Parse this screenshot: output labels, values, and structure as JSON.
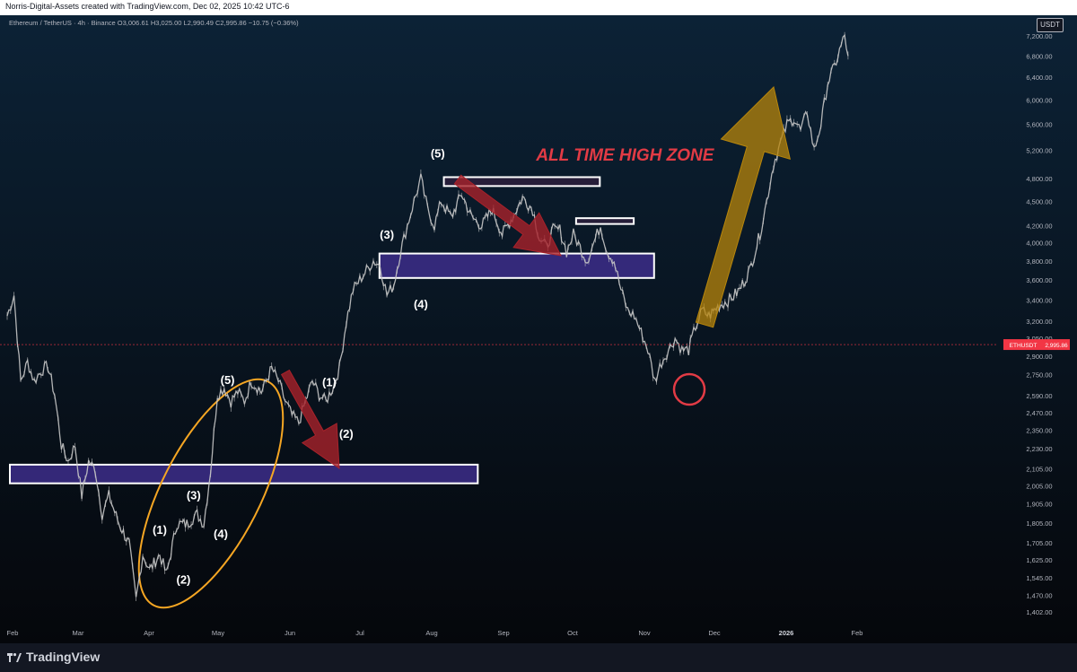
{
  "attribution": "Norris-Digital-Assets created with TradingView.com, Dec 02, 2025 10:42 UTC-6",
  "logo_text": "TradingView",
  "currency_badge": "USDT",
  "colors": {
    "background_top": "#0c2236",
    "background_bottom": "#05070b",
    "candles": "#c7c7c7",
    "zone_fill": "#3c2d8a",
    "zone_border": "#ffffff",
    "ath_zone_fill": "#2a1f3b",
    "red_arrow": "#a8222a",
    "gold_arrow": "#b8860b",
    "ellipse": "#f5a623",
    "circle": "#e23b45",
    "ath_label": "#e23b45",
    "price_tag": "#f23645"
  },
  "chart_data": {
    "type": "line",
    "symbol_line": {
      "pair": "Ethereum / TetherUS · 4h · Binance",
      "open": "O3,006.61",
      "high": "H3,025.00",
      "low": "L2,990.49",
      "close": "C2,995.86",
      "change": "−10.75 (−0.36%)"
    },
    "x_axis_labels": [
      "Feb",
      "Mar",
      "Apr",
      "May",
      "Jun",
      "Jul",
      "Aug",
      "Sep",
      "Oct",
      "Nov",
      "Dec",
      "2026",
      "Feb"
    ],
    "y_axis_labels": [
      "7,200.00",
      "6,800.00",
      "6,400.00",
      "6,000.00",
      "5,600.00",
      "5,200.00",
      "4,800.00",
      "4,500.00",
      "4,200.00",
      "4,000.00",
      "3,800.00",
      "3,600.00",
      "3,400.00",
      "3,200.00",
      "3,050.00",
      "2,900.00",
      "2,750.00",
      "2,590.00",
      "2,470.00",
      "2,350.00",
      "2,230.00",
      "2,105.00",
      "2,005.00",
      "1,905.00",
      "1,805.00",
      "1,705.00",
      "1,625.00",
      "1,545.00",
      "1,470.00",
      "1,402.00"
    ],
    "y_scale": "log",
    "price_tag": {
      "symbol": "ETHUSDT",
      "value": "2,995.86",
      "price": 2995.86
    },
    "price_path": [
      [
        0,
        3250
      ],
      [
        2,
        3450
      ],
      [
        4,
        2700
      ],
      [
        6,
        2850
      ],
      [
        8,
        2700
      ],
      [
        10,
        2780
      ],
      [
        12,
        2820
      ],
      [
        14,
        2600
      ],
      [
        16,
        2250
      ],
      [
        18,
        2150
      ],
      [
        20,
        2250
      ],
      [
        22,
        1950
      ],
      [
        24,
        2150
      ],
      [
        26,
        2100
      ],
      [
        28,
        1850
      ],
      [
        30,
        1950
      ],
      [
        33,
        1800
      ],
      [
        36,
        1700
      ],
      [
        38,
        1450
      ],
      [
        40,
        1650
      ],
      [
        42,
        1580
      ],
      [
        45,
        1650
      ],
      [
        47,
        1560
      ],
      [
        50,
        1800
      ],
      [
        53,
        1800
      ],
      [
        56,
        1850
      ],
      [
        58,
        1800
      ],
      [
        60,
        2100
      ],
      [
        62,
        2600
      ],
      [
        64,
        2650
      ],
      [
        66,
        2550
      ],
      [
        68,
        2620
      ],
      [
        70,
        2550
      ],
      [
        72,
        2700
      ],
      [
        75,
        2620
      ],
      [
        78,
        2800
      ],
      [
        80,
        2700
      ],
      [
        82,
        2550
      ],
      [
        84,
        2450
      ],
      [
        86,
        2400
      ],
      [
        88,
        2550
      ],
      [
        90,
        2700
      ],
      [
        92,
        2600
      ],
      [
        94,
        2550
      ],
      [
        96,
        2650
      ],
      [
        98,
        2800
      ],
      [
        100,
        3200
      ],
      [
        102,
        3500
      ],
      [
        104,
        3600
      ],
      [
        106,
        3700
      ],
      [
        108,
        3800
      ],
      [
        110,
        3750
      ],
      [
        112,
        3450
      ],
      [
        114,
        3550
      ],
      [
        116,
        3900
      ],
      [
        118,
        4200
      ],
      [
        120,
        4500
      ],
      [
        122,
        4800
      ],
      [
        124,
        4400
      ],
      [
        126,
        4200
      ],
      [
        128,
        4500
      ],
      [
        131,
        4300
      ],
      [
        134,
        4600
      ],
      [
        137,
        4300
      ],
      [
        140,
        4200
      ],
      [
        143,
        4400
      ],
      [
        146,
        4100
      ],
      [
        149,
        4300
      ],
      [
        152,
        4550
      ],
      [
        155,
        4400
      ],
      [
        157,
        4050
      ],
      [
        159,
        3950
      ],
      [
        161,
        4150
      ],
      [
        163,
        4150
      ],
      [
        165,
        3900
      ],
      [
        167,
        4100
      ],
      [
        169,
        3950
      ],
      [
        171,
        3800
      ],
      [
        173,
        4000
      ],
      [
        175,
        4200
      ],
      [
        177,
        3900
      ],
      [
        179,
        3800
      ],
      [
        181,
        3500
      ],
      [
        183,
        3300
      ],
      [
        185,
        3250
      ],
      [
        187,
        3100
      ],
      [
        189,
        2950
      ],
      [
        191,
        2700
      ],
      [
        193,
        2850
      ],
      [
        195,
        2950
      ],
      [
        197,
        3050
      ],
      [
        199,
        2950
      ],
      [
        201,
        2950
      ],
      [
        203,
        3150
      ],
      [
        205,
        3300
      ],
      [
        207,
        3250
      ],
      [
        210,
        3350
      ],
      [
        213,
        3400
      ],
      [
        216,
        3500
      ],
      [
        219,
        3700
      ],
      [
        222,
        4100
      ],
      [
        224,
        4500
      ],
      [
        226,
        5000
      ],
      [
        228,
        5300
      ],
      [
        230,
        5600
      ],
      [
        232,
        5700
      ],
      [
        234,
        5500
      ],
      [
        236,
        5800
      ],
      [
        238,
        5200
      ],
      [
        240,
        5600
      ],
      [
        242,
        6300
      ],
      [
        244,
        6600
      ],
      [
        246,
        7000
      ],
      [
        247,
        7200
      ],
      [
        248,
        6800
      ]
    ],
    "x_day_span": [
      0,
      252
    ],
    "annotations": [
      {
        "text": "(1)",
        "day": 45,
        "price": 1750
      },
      {
        "text": "(2)",
        "day": 52,
        "price": 1520
      },
      {
        "text": "(3)",
        "day": 55,
        "price": 1930
      },
      {
        "text": "(4)",
        "day": 63,
        "price": 1730
      },
      {
        "text": "(5)",
        "day": 65,
        "price": 2680
      },
      {
        "text": "(1)",
        "day": 95,
        "price": 2660
      },
      {
        "text": "(2)",
        "day": 100,
        "price": 2300
      },
      {
        "text": "(3)",
        "day": 112,
        "price": 4050
      },
      {
        "text": "(4)",
        "day": 122,
        "price": 3320
      },
      {
        "text": "(5)",
        "day": 127,
        "price": 5100
      },
      {
        "text": "ALL TIME HIGH ZONE",
        "day": 156,
        "price": 5050
      }
    ],
    "zones": [
      {
        "day_start": 0,
        "day_end": 138,
        "price_low": 2020,
        "price_high": 2130,
        "style": "purple"
      },
      {
        "day_start": 109,
        "day_end": 190,
        "price_low": 3620,
        "price_high": 3880,
        "style": "purple"
      },
      {
        "day_start": 128,
        "day_end": 174,
        "price_low": 4700,
        "price_high": 4820,
        "style": "ath"
      },
      {
        "day_start": 167,
        "day_end": 184,
        "price_low": 4220,
        "price_high": 4290,
        "style": "ath"
      }
    ]
  }
}
